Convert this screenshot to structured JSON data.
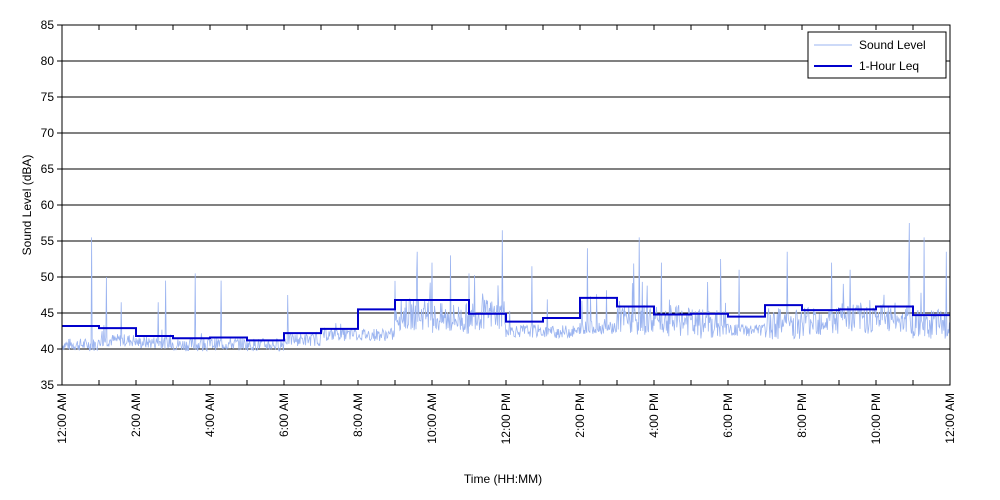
{
  "chart_data": {
    "type": "line",
    "xlabel": "Time (HH:MM)",
    "ylabel": "Sound Level (dBA)",
    "xlim": [
      0,
      24
    ],
    "ylim": [
      35,
      85
    ],
    "y_ticks": [
      35,
      40,
      45,
      50,
      55,
      60,
      65,
      70,
      75,
      80,
      85
    ],
    "x_ticks": [
      {
        "hour": 0,
        "label": "12:00 AM"
      },
      {
        "hour": 2,
        "label": "2:00 AM"
      },
      {
        "hour": 4,
        "label": "4:00 AM"
      },
      {
        "hour": 6,
        "label": "6:00 AM"
      },
      {
        "hour": 8,
        "label": "8:00 AM"
      },
      {
        "hour": 10,
        "label": "10:00 AM"
      },
      {
        "hour": 12,
        "label": "12:00 PM"
      },
      {
        "hour": 14,
        "label": "2:00 PM"
      },
      {
        "hour": 16,
        "label": "4:00 PM"
      },
      {
        "hour": 18,
        "label": "6:00 PM"
      },
      {
        "hour": 20,
        "label": "8:00 PM"
      },
      {
        "hour": 22,
        "label": "10:00 PM"
      },
      {
        "hour": 24,
        "label": "12:00 AM"
      }
    ],
    "grid": "horizontal",
    "legend_position": "top-right",
    "series": [
      {
        "name": "Sound Level",
        "color": "#9bb4f0",
        "style": "thin-line",
        "baseline_by_hour": [
          40.6,
          41.2,
          40.9,
          40.6,
          40.7,
          40.6,
          41.3,
          42.0,
          42.0,
          44.8,
          44.2,
          44.8,
          42.5,
          42.4,
          43.0,
          44.0,
          43.9,
          43.4,
          42.6,
          43.5,
          44.0,
          44.3,
          44.3,
          43.3
        ],
        "spikes": [
          {
            "hour": 0.8,
            "value": 55.5
          },
          {
            "hour": 1.2,
            "value": 50.0
          },
          {
            "hour": 1.6,
            "value": 46.5
          },
          {
            "hour": 2.6,
            "value": 46.5
          },
          {
            "hour": 2.8,
            "value": 49.5
          },
          {
            "hour": 3.6,
            "value": 50.5
          },
          {
            "hour": 4.3,
            "value": 49.5
          },
          {
            "hour": 6.1,
            "value": 47.5
          },
          {
            "hour": 9.6,
            "value": 53.5
          },
          {
            "hour": 10.0,
            "value": 52.0
          },
          {
            "hour": 10.5,
            "value": 53.0
          },
          {
            "hour": 11.9,
            "value": 56.5
          },
          {
            "hour": 12.7,
            "value": 51.5
          },
          {
            "hour": 14.2,
            "value": 54.0
          },
          {
            "hour": 15.6,
            "value": 55.5
          },
          {
            "hour": 16.2,
            "value": 52.0
          },
          {
            "hour": 17.8,
            "value": 52.5
          },
          {
            "hour": 18.3,
            "value": 51.0
          },
          {
            "hour": 19.6,
            "value": 53.5
          },
          {
            "hour": 20.8,
            "value": 52.0
          },
          {
            "hour": 21.3,
            "value": 51.0
          },
          {
            "hour": 22.9,
            "value": 57.5
          },
          {
            "hour": 23.3,
            "value": 55.5
          },
          {
            "hour": 23.9,
            "value": 53.5
          }
        ]
      },
      {
        "name": "1-Hour Leq",
        "color": "#0000cc",
        "style": "step",
        "hours": [
          0,
          1,
          2,
          3,
          4,
          5,
          6,
          7,
          8,
          9,
          10,
          11,
          12,
          13,
          14,
          15,
          16,
          17,
          18,
          19,
          20,
          21,
          22,
          23
        ],
        "values": [
          43.2,
          42.9,
          41.8,
          41.5,
          41.6,
          41.2,
          42.2,
          42.8,
          45.5,
          46.8,
          46.8,
          44.9,
          43.8,
          44.3,
          47.1,
          45.9,
          44.8,
          44.9,
          44.5,
          46.1,
          45.4,
          45.5,
          45.9,
          44.7
        ]
      }
    ]
  }
}
